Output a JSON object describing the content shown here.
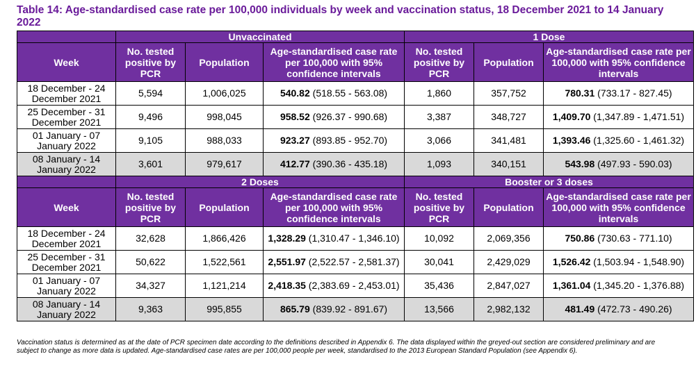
{
  "title": "Table 14: Age-standardised case rate per 100,000 individuals by week and vaccination status, 18 December 2021 to 14 January 2022",
  "column_headers": {
    "week": "Week",
    "tested": "No. tested positive by PCR",
    "population": "Population",
    "rate": "Age-standardised case rate per 100,000 with 95% confidence intervals"
  },
  "sections": [
    {
      "left_group": "Unvaccinated",
      "right_group": "1 Dose",
      "rows": [
        {
          "week": "18 December - 24 December 2021",
          "l_tested": "5,594",
          "l_pop": "1,006,025",
          "l_rate": "540.82",
          "l_ci": " (518.55 - 563.08)",
          "r_tested": "1,860",
          "r_pop": "357,752",
          "r_rate": "780.31",
          "r_ci": " (733.17 - 827.45)"
        },
        {
          "week": "25 December - 31 December 2021",
          "l_tested": "9,496",
          "l_pop": "998,045",
          "l_rate": "958.52",
          "l_ci": " (926.37 - 990.68)",
          "r_tested": "3,387",
          "r_pop": "348,727",
          "r_rate": "1,409.70",
          "r_ci": " (1,347.89 - 1,471.51)"
        },
        {
          "week": "01 January - 07 January 2022",
          "l_tested": "9,105",
          "l_pop": "988,033",
          "l_rate": "923.27",
          "l_ci": " (893.85 - 952.70)",
          "r_tested": "3,066",
          "r_pop": "341,481",
          "r_rate": "1,393.46",
          "r_ci": " (1,325.60 - 1,461.32)"
        },
        {
          "week": "08 January - 14 January 2022",
          "l_tested": "3,601",
          "l_pop": "979,617",
          "l_rate": "412.77",
          "l_ci": " (390.36 - 435.18)",
          "r_tested": "1,093",
          "r_pop": "340,151",
          "r_rate": "543.98",
          "r_ci": " (497.93 - 590.03)"
        }
      ]
    },
    {
      "left_group": "2 Doses",
      "right_group": "Booster or 3 doses",
      "rows": [
        {
          "week": "18 December - 24 December 2021",
          "l_tested": "32,628",
          "l_pop": "1,866,426",
          "l_rate": "1,328.29",
          "l_ci": " (1,310.47 - 1,346.10)",
          "r_tested": "10,092",
          "r_pop": "2,069,356",
          "r_rate": "750.86",
          "r_ci": " (730.63 - 771.10)"
        },
        {
          "week": "25 December - 31 December 2021",
          "l_tested": "50,622",
          "l_pop": "1,522,561",
          "l_rate": "2,551.97",
          "l_ci": " (2,522.57 - 2,581.37)",
          "r_tested": "30,041",
          "r_pop": "2,429,029",
          "r_rate": "1,526.42",
          "r_ci": " (1,503.94 - 1,548.90)"
        },
        {
          "week": "01 January - 07 January 2022",
          "l_tested": "34,327",
          "l_pop": "1,121,214",
          "l_rate": "2,418.35",
          "l_ci": " (2,383.69 - 2,453.01)",
          "r_tested": "35,436",
          "r_pop": "2,847,027",
          "r_rate": "1,361.04",
          "r_ci": " (1,345.20 - 1,376.88)"
        },
        {
          "week": "08 January - 14 January 2022",
          "l_tested": "9,363",
          "l_pop": "995,855",
          "l_rate": "865.79",
          "l_ci": " (839.92 - 891.67)",
          "r_tested": "13,566",
          "r_pop": "2,982,132",
          "r_rate": "481.49",
          "r_ci": " (472.73 - 490.26)"
        }
      ]
    }
  ],
  "footnote": "Vaccination status is determined as at the date of PCR specimen date according to the definitions described in Appendix 6. The data displayed within the greyed-out section are considered preliminary and are subject to change as more data is updated. Age-standardised case rates are per 100,000 people per week, standardised to the 2013 European Standard Population (see Appendix 6).",
  "colors": {
    "header_purple": "#7030a0",
    "title_purple": "#6a1b9a",
    "grey_row": "#d9d9d9"
  }
}
